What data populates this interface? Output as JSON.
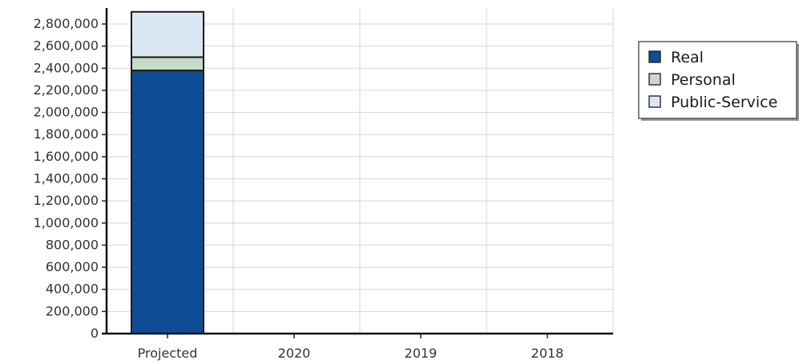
{
  "chart_data": {
    "type": "bar",
    "stacked": true,
    "title": "",
    "xlabel": "",
    "ylabel": "",
    "categories": [
      "Projected",
      "2020",
      "2019",
      "2018"
    ],
    "series": [
      {
        "name": "Real",
        "values": [
          2380000,
          0,
          0,
          0
        ],
        "color": "#0e4d94"
      },
      {
        "name": "Personal",
        "values": [
          120000,
          0,
          0,
          0
        ],
        "color": "#c5dbc8"
      },
      {
        "name": "Public-Service",
        "values": [
          410000,
          0,
          0,
          0
        ],
        "color": "#dbe7f3"
      }
    ],
    "ylim": [
      0,
      2800000
    ],
    "y_ticks": [
      0,
      200000,
      400000,
      600000,
      800000,
      1000000,
      1200000,
      1400000,
      1600000,
      1800000,
      2000000,
      2200000,
      2400000,
      2600000,
      2800000
    ],
    "y_tick_labels": [
      "0",
      "200,000",
      "400,000",
      "600,000",
      "800,000",
      "1,000,000",
      "1,200,000",
      "1,400,000",
      "1,600,000",
      "1,800,000",
      "2,000,000",
      "2,200,000",
      "2,400,000",
      "2,600,000",
      "2,800,000"
    ],
    "grid": true,
    "legend_position": "right"
  }
}
